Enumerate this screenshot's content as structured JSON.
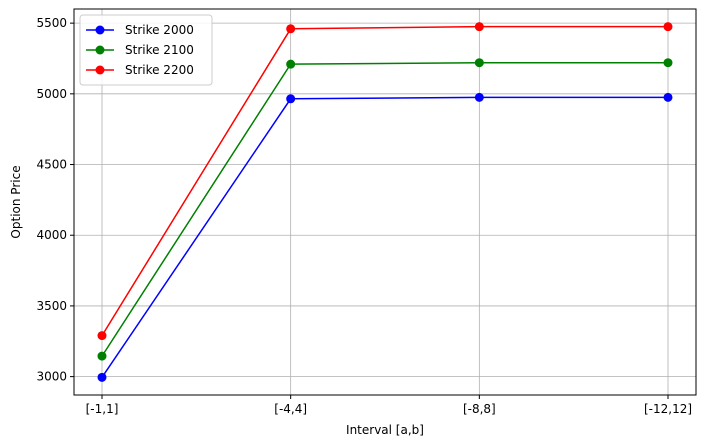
{
  "chart_data": {
    "type": "line",
    "title": "",
    "xlabel": "Interval [a,b]",
    "ylabel": "Option Price",
    "categories": [
      "[-1,1]",
      "[-4,4]",
      "[-8,8]",
      "[-12,12]"
    ],
    "ylim": [
      2870,
      5600
    ],
    "yticks": [
      3000,
      3500,
      4000,
      4500,
      5000,
      5500
    ],
    "grid": true,
    "legend": {
      "position": "top-left"
    },
    "series": [
      {
        "name": "Strike 2000",
        "color": "#0000ff",
        "marker": "circle",
        "values": [
          2995,
          4965,
          4975,
          4975
        ]
      },
      {
        "name": "Strike 2100",
        "color": "#008000",
        "marker": "circle",
        "values": [
          3145,
          5210,
          5220,
          5220
        ]
      },
      {
        "name": "Strike 2200",
        "color": "#ff0000",
        "marker": "circle",
        "values": [
          3290,
          5460,
          5475,
          5475
        ]
      }
    ]
  }
}
